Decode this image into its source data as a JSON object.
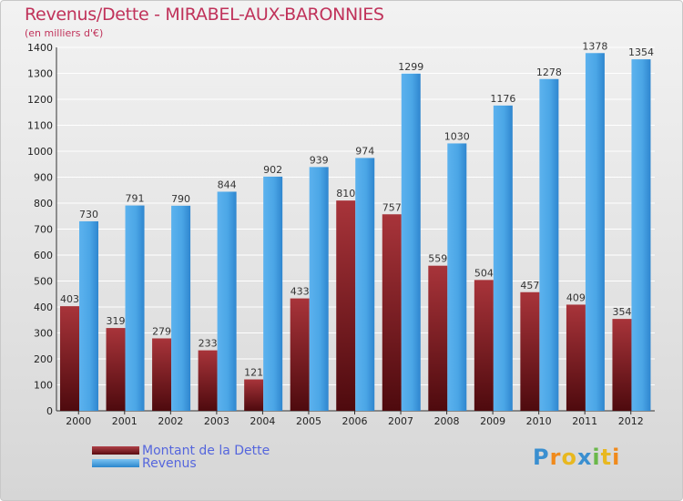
{
  "chart_data": {
    "type": "bar",
    "title": "Revenus/Dette - MIRABEL-AUX-BARONNIES",
    "subtitle": "(en milliers d'€)",
    "categories": [
      "2000",
      "2001",
      "2002",
      "2003",
      "2004",
      "2005",
      "2006",
      "2007",
      "2008",
      "2009",
      "2010",
      "2011",
      "2012"
    ],
    "series": [
      {
        "name": "Montant de la Dette",
        "color": "#7a1a1e",
        "values": [
          403,
          319,
          279,
          233,
          121,
          433,
          810,
          757,
          559,
          504,
          457,
          409,
          354
        ]
      },
      {
        "name": "Revenus",
        "color": "#4aa3e3",
        "values": [
          730,
          791,
          790,
          844,
          902,
          939,
          974,
          1299,
          1030,
          1176,
          1278,
          1378,
          1354
        ]
      }
    ],
    "ylim": [
      0,
      1400
    ],
    "yticks": [
      0,
      100,
      200,
      300,
      400,
      500,
      600,
      700,
      800,
      900,
      1000,
      1100,
      1200,
      1300,
      1400
    ],
    "grid": true,
    "legend_position": "bottom-left"
  },
  "logo": {
    "letters": [
      "P",
      "r",
      "o",
      "x",
      "i",
      "t",
      "i"
    ],
    "colors": [
      "#3a8fd0",
      "#f08a1c",
      "#e8b820",
      "#3a8fd0",
      "#6ab84a",
      "#e8b820",
      "#f08a1c"
    ]
  }
}
